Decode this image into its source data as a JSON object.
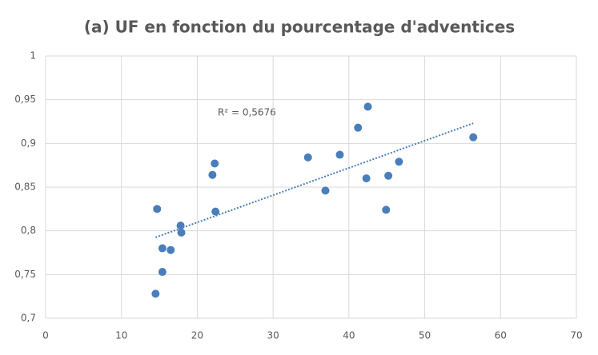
{
  "chart_data": {
    "type": "scatter",
    "title": "(a) UF en fonction du pourcentage d'adventices",
    "annotation": "R² = 0,5676",
    "x": [
      14.7,
      14.5,
      15.4,
      15.4,
      16.5,
      17.8,
      17.9,
      22.0,
      22.3,
      22.4,
      34.6,
      36.9,
      38.8,
      41.2,
      42.5,
      42.3,
      44.9,
      45.2,
      46.6,
      56.4
    ],
    "values": [
      0.825,
      0.728,
      0.753,
      0.78,
      0.778,
      0.806,
      0.798,
      0.864,
      0.877,
      0.822,
      0.884,
      0.846,
      0.887,
      0.918,
      0.942,
      0.86,
      0.824,
      0.863,
      0.879,
      0.907
    ],
    "color": "#4a7ebb",
    "trendline": true,
    "grid": true,
    "xlim": [
      0,
      70
    ],
    "xticks": [
      0,
      10,
      20,
      30,
      40,
      50,
      60,
      70
    ],
    "ylim": [
      0.7,
      1
    ],
    "yticks": [
      {
        "value": 0.7,
        "label": "0,7"
      },
      {
        "value": 0.75,
        "label": "0,75"
      },
      {
        "value": 0.8,
        "label": "0,8"
      },
      {
        "value": 0.85,
        "label": "0,85"
      },
      {
        "value": 0.9,
        "label": "0,9"
      },
      {
        "value": 0.95,
        "label": "0,95"
      },
      1
    ]
  }
}
